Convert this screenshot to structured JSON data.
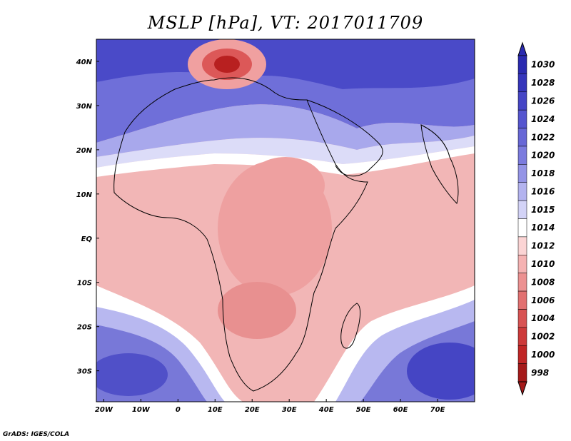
{
  "title": "MSLP [hPa], VT: 2017011709",
  "credit": "GrADS: IGES/COLA",
  "map": {
    "lon_range": [
      -22,
      80
    ],
    "lat_range": [
      -37,
      45
    ],
    "lon_ticks": [
      {
        "value": -20,
        "label": "20W"
      },
      {
        "value": -10,
        "label": "10W"
      },
      {
        "value": 0,
        "label": "0"
      },
      {
        "value": 10,
        "label": "10E"
      },
      {
        "value": 20,
        "label": "20E"
      },
      {
        "value": 30,
        "label": "30E"
      },
      {
        "value": 40,
        "label": "40E"
      },
      {
        "value": 50,
        "label": "50E"
      },
      {
        "value": 60,
        "label": "60E"
      },
      {
        "value": 70,
        "label": "70E"
      }
    ],
    "lat_ticks": [
      {
        "value": 40,
        "label": "40N"
      },
      {
        "value": 30,
        "label": "30N"
      },
      {
        "value": 20,
        "label": "20N"
      },
      {
        "value": 10,
        "label": "10N"
      },
      {
        "value": 0,
        "label": "EQ"
      },
      {
        "value": -10,
        "label": "10S"
      },
      {
        "value": -20,
        "label": "20S"
      },
      {
        "value": -30,
        "label": "30S"
      }
    ],
    "features": [
      {
        "name": "low-pressure-tunisia",
        "lon": 12,
        "lat": 37.5,
        "value": 1000
      },
      {
        "name": "low-pressure-central-africa",
        "lon": 22,
        "lat": 2,
        "value": 1008
      },
      {
        "name": "low-pressure-southern-africa",
        "lon": 22,
        "lat": -17,
        "value": 1008
      },
      {
        "name": "high-pressure-south-atlantic",
        "lon": -10,
        "lat": -32,
        "value": 1026
      },
      {
        "name": "high-pressure-south-indian",
        "lon": 70,
        "lat": -32,
        "value": 1028
      },
      {
        "name": "high-pressure-mediterranean-east",
        "lon": 40,
        "lat": 42,
        "value": 1028
      }
    ]
  },
  "colorbar": {
    "levels": [
      "1030",
      "1028",
      "1026",
      "1024",
      "1022",
      "1020",
      "1018",
      "1016",
      "1015",
      "1014",
      "1012",
      "1010",
      "1008",
      "1006",
      "1004",
      "1002",
      "1000",
      "998"
    ],
    "colors": [
      "#2a2ab0",
      "#3535bb",
      "#4545c6",
      "#5555cf",
      "#6767d6",
      "#7b7bde",
      "#9494e6",
      "#b3b3ef",
      "#d3d3f7",
      "#ffffff",
      "#fbd4d4",
      "#f5b2b2",
      "#ec9191",
      "#e27171",
      "#d85353",
      "#cd3a3a",
      "#c02626",
      "#a51a1a"
    ]
  }
}
